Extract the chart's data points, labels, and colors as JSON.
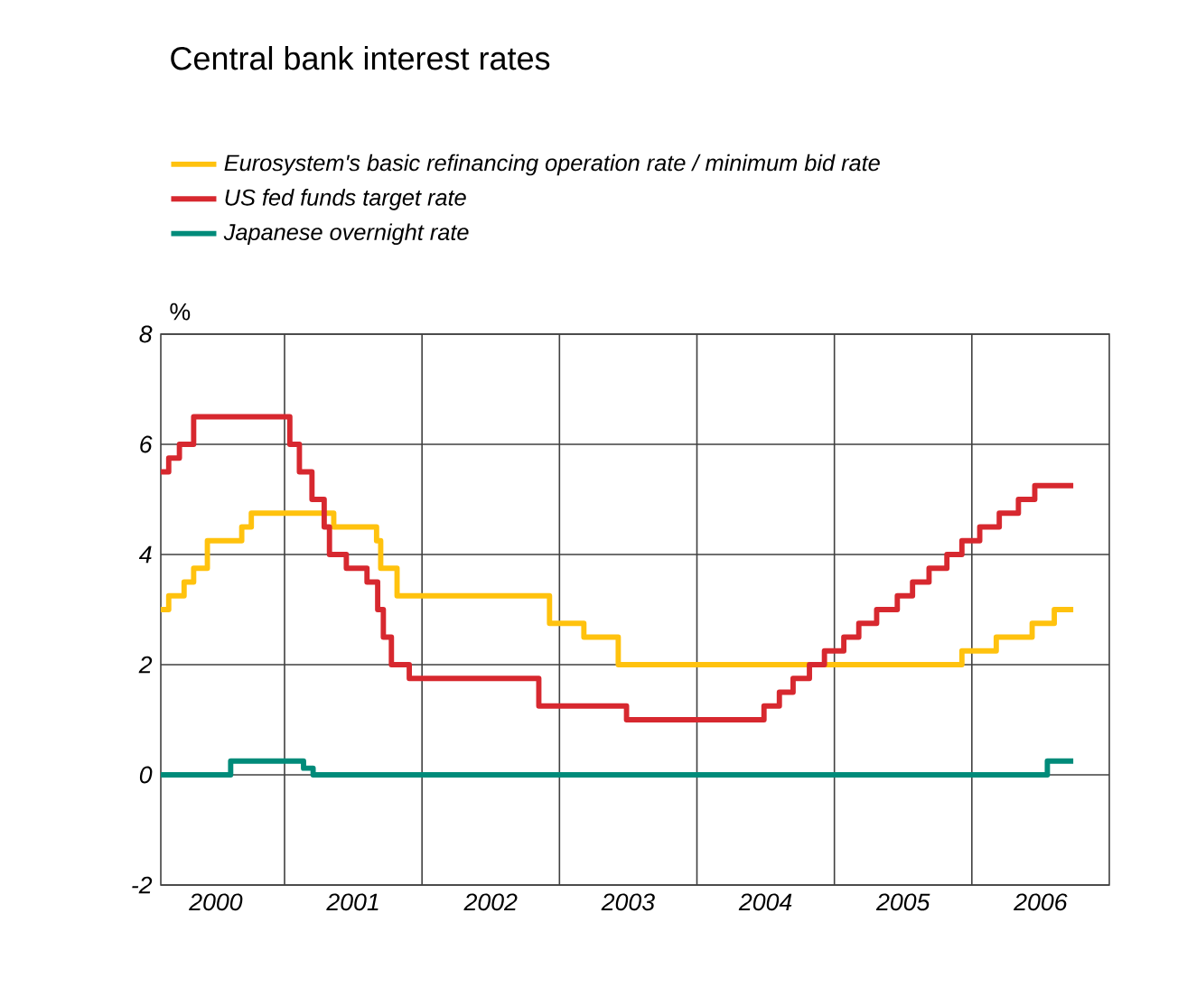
{
  "chart_data": {
    "type": "step",
    "title": "Central bank interest rates",
    "ylabel": "%",
    "xlim": [
      "2000-02-07",
      "2007-01-01"
    ],
    "ylim": [
      -2,
      8
    ],
    "xticks": [
      {
        "value": "2000-07-01",
        "label": "2000"
      },
      {
        "value": "2001-07-01",
        "label": "2001"
      },
      {
        "value": "2002-07-01",
        "label": "2002"
      },
      {
        "value": "2003-07-01",
        "label": "2003"
      },
      {
        "value": "2004-07-01",
        "label": "2004"
      },
      {
        "value": "2005-07-01",
        "label": "2005"
      },
      {
        "value": "2006-07-01",
        "label": "2006"
      },
      {
        "value": "2001-01-01",
        "label": null
      },
      {
        "value": "2002-01-01",
        "label": null
      },
      {
        "value": "2003-01-01",
        "label": null
      },
      {
        "value": "2004-01-01",
        "label": null
      },
      {
        "value": "2005-01-01",
        "label": null
      },
      {
        "value": "2006-01-01",
        "label": null
      }
    ],
    "yticks": [
      -2,
      0,
      2,
      4,
      6,
      8
    ],
    "grid": true,
    "legend": "top",
    "marker": "none",
    "line_style": "solid",
    "series": [
      {
        "name": "Eurosystem's basic refinancing operation rate / minimum bid rate",
        "color": "#ffc20e",
        "x": [
          "2000-02-07",
          "2000-02-28",
          "2000-04-08",
          "2000-05-03",
          "2000-06-09",
          "2000-09-09",
          "2000-10-04",
          "2001-05-10",
          "2001-09-02",
          "2001-09-13",
          "2001-10-26",
          "2002-12-05",
          "2003-03-05",
          "2003-06-05",
          "2005-12-05",
          "2006-03-05",
          "2006-06-09",
          "2006-08-07",
          "2006-09-27"
        ],
        "values": [
          3.0,
          3.25,
          3.5,
          3.75,
          4.25,
          4.5,
          4.75,
          4.5,
          4.25,
          3.75,
          3.25,
          2.75,
          2.5,
          2.0,
          2.25,
          2.5,
          2.75,
          3.0,
          3.0
        ]
      },
      {
        "name": "US fed funds target rate",
        "color": "#d7282f",
        "x": [
          "2000-02-07",
          "2000-02-28",
          "2000-03-26",
          "2000-05-03",
          "2001-01-15",
          "2001-02-10",
          "2001-03-13",
          "2001-04-15",
          "2001-04-29",
          "2001-06-13",
          "2001-08-07",
          "2001-09-05",
          "2001-09-20",
          "2001-10-11",
          "2001-11-28",
          "2002-11-07",
          "2003-06-27",
          "2004-06-27",
          "2004-08-07",
          "2004-09-13",
          "2004-10-26",
          "2004-12-05",
          "2005-01-26",
          "2005-03-05",
          "2005-04-22",
          "2005-06-16",
          "2005-07-26",
          "2005-09-09",
          "2005-10-26",
          "2005-12-05",
          "2006-01-22",
          "2006-03-13",
          "2006-05-03",
          "2006-06-16",
          "2006-09-27"
        ],
        "values": [
          5.5,
          5.75,
          6.0,
          6.5,
          6.0,
          5.5,
          5.0,
          4.5,
          4.0,
          3.75,
          3.5,
          3.0,
          2.5,
          2.0,
          1.75,
          1.25,
          1.0,
          1.25,
          1.5,
          1.75,
          2.0,
          2.25,
          2.5,
          2.75,
          3.0,
          3.25,
          3.5,
          3.75,
          4.0,
          4.25,
          4.5,
          4.75,
          5.0,
          5.25,
          5.25
        ]
      },
      {
        "name": "Japanese overnight rate",
        "color": "#008b7a",
        "x": [
          "2000-02-07",
          "2000-08-10",
          "2001-02-21",
          "2001-03-16",
          "2006-07-19",
          "2006-09-27"
        ],
        "values": [
          0.0,
          0.25,
          0.12,
          0.0,
          0.25,
          0.25
        ]
      }
    ]
  }
}
